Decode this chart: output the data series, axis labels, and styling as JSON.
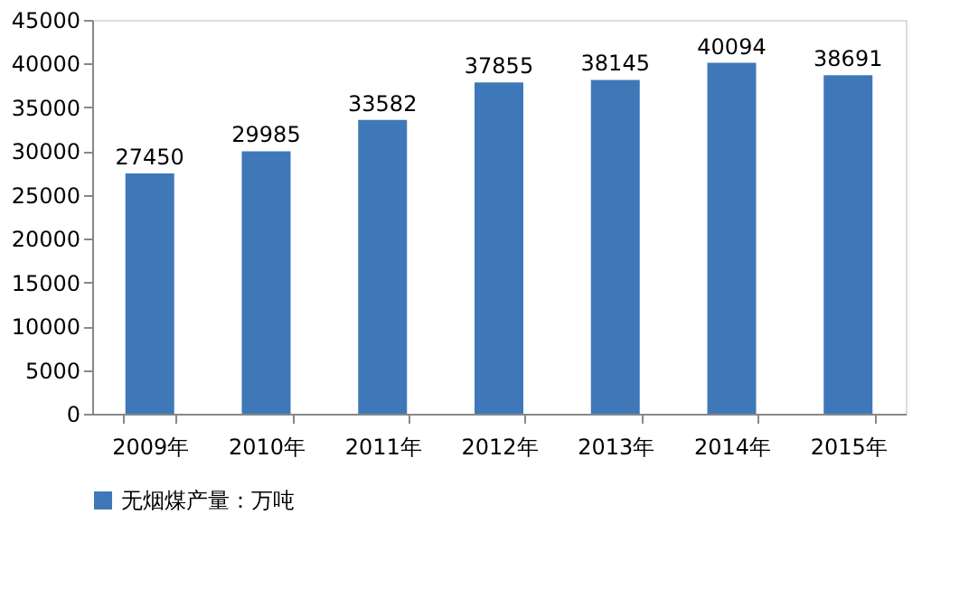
{
  "chart_data": {
    "type": "bar",
    "categories": [
      "2009年",
      "2010年",
      "2011年",
      "2012年",
      "2013年",
      "2014年",
      "2015年"
    ],
    "series": [
      {
        "name": "无烟煤产量：万吨",
        "color": "#3f78b9",
        "values": [
          27450,
          29985,
          33582,
          37855,
          38145,
          40094,
          38691
        ]
      }
    ],
    "ylim": [
      0,
      45000
    ],
    "yticks": [
      0,
      5000,
      10000,
      15000,
      20000,
      25000,
      30000,
      35000,
      40000,
      45000
    ],
    "grid": false,
    "legend": "bottom",
    "data_labels": true
  }
}
